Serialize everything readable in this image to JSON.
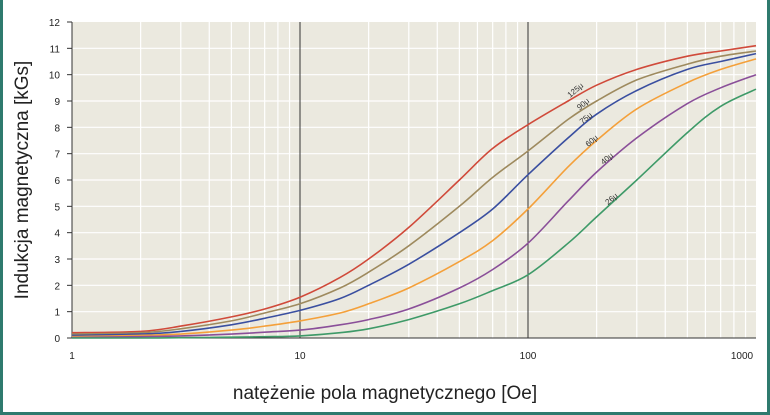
{
  "chart_data": {
    "type": "line",
    "xlabel": "natężenie pola magnetycznego [Oe]",
    "ylabel": "Indukcja magnetyczna [kGs]",
    "xscale": "log",
    "xlim": [
      1,
      1000
    ],
    "ylim": [
      0,
      12
    ],
    "x_ticks": [
      "1",
      "10",
      "100",
      "1000"
    ],
    "y_ticks": [
      "0",
      "1",
      "2",
      "3",
      "4",
      "5",
      "6",
      "7",
      "8",
      "9",
      "10",
      "11",
      "12"
    ],
    "grid": true,
    "background": "#ebe9df",
    "series": [
      {
        "name": "125μ",
        "color": "#d04a3a",
        "x": [
          1,
          2,
          3,
          5,
          7,
          10,
          15,
          20,
          30,
          50,
          70,
          100,
          150,
          200,
          300,
          500,
          700,
          1000
        ],
        "y": [
          0.2,
          0.25,
          0.45,
          0.8,
          1.1,
          1.55,
          2.3,
          3.0,
          4.2,
          6.0,
          7.2,
          8.1,
          9.0,
          9.6,
          10.2,
          10.7,
          10.9,
          11.1
        ]
      },
      {
        "name": "90μ",
        "color": "#9e8a5e",
        "x": [
          1,
          2,
          3,
          5,
          7,
          10,
          15,
          20,
          30,
          50,
          70,
          100,
          150,
          200,
          300,
          500,
          700,
          1000
        ],
        "y": [
          0.15,
          0.2,
          0.35,
          0.65,
          0.95,
          1.3,
          1.9,
          2.5,
          3.5,
          5.0,
          6.1,
          7.1,
          8.3,
          9.0,
          9.8,
          10.4,
          10.7,
          10.9
        ]
      },
      {
        "name": "75μ",
        "color": "#3a4fa0",
        "x": [
          1,
          2,
          3,
          5,
          7,
          10,
          15,
          20,
          30,
          50,
          70,
          100,
          150,
          200,
          300,
          500,
          700,
          1000
        ],
        "y": [
          0.1,
          0.15,
          0.25,
          0.5,
          0.75,
          1.05,
          1.5,
          2.0,
          2.8,
          4.0,
          4.9,
          6.2,
          7.6,
          8.5,
          9.4,
          10.2,
          10.5,
          10.8
        ]
      },
      {
        "name": "60μ",
        "color": "#f4a03a",
        "x": [
          1,
          2,
          3,
          5,
          7,
          10,
          15,
          20,
          30,
          50,
          70,
          100,
          150,
          200,
          300,
          500,
          700,
          1000
        ],
        "y": [
          0.05,
          0.1,
          0.15,
          0.3,
          0.45,
          0.65,
          0.95,
          1.3,
          1.9,
          2.9,
          3.7,
          4.9,
          6.5,
          7.5,
          8.7,
          9.7,
          10.2,
          10.6
        ]
      },
      {
        "name": "40μ",
        "color": "#8a4f99",
        "x": [
          1,
          2,
          3,
          5,
          7,
          10,
          15,
          20,
          30,
          50,
          70,
          100,
          150,
          200,
          300,
          500,
          700,
          1000
        ],
        "y": [
          0.02,
          0.05,
          0.08,
          0.15,
          0.22,
          0.3,
          0.5,
          0.7,
          1.1,
          1.9,
          2.6,
          3.6,
          5.2,
          6.3,
          7.6,
          8.9,
          9.5,
          10.0
        ]
      },
      {
        "name": "26μ",
        "color": "#3e9a68",
        "x": [
          1,
          2,
          3,
          5,
          7,
          10,
          15,
          20,
          30,
          50,
          70,
          100,
          150,
          200,
          300,
          500,
          700,
          1000
        ],
        "y": [
          0.0,
          0.0,
          0.01,
          0.03,
          0.05,
          0.08,
          0.2,
          0.35,
          0.7,
          1.3,
          1.8,
          2.4,
          3.6,
          4.6,
          6.0,
          7.8,
          8.8,
          9.45
        ]
      }
    ]
  }
}
